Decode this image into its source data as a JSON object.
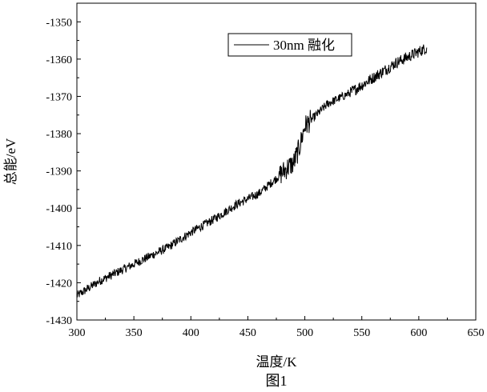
{
  "figure": {
    "caption": "图1"
  },
  "chart_data": {
    "type": "line",
    "title": "",
    "xlabel": "温度/K",
    "ylabel": "总能/eV",
    "xlim": [
      300,
      650
    ],
    "ylim": [
      -1430,
      -1345
    ],
    "x_ticks": [
      300,
      350,
      400,
      450,
      500,
      550,
      600,
      650
    ],
    "y_ticks": [
      -1430,
      -1420,
      -1410,
      -1400,
      -1390,
      -1380,
      -1370,
      -1360,
      -1350
    ],
    "grid": false,
    "legend_position": "top-center",
    "line_color": "#000000",
    "series": [
      {
        "name": "30nm 融化",
        "x_range": [
          300,
          607
        ],
        "description_points": [
          [
            300,
            -1423.5
          ],
          [
            320,
            -1419.5
          ],
          [
            340,
            -1416.5
          ],
          [
            360,
            -1413.5
          ],
          [
            380,
            -1410.5
          ],
          [
            400,
            -1406.5
          ],
          [
            420,
            -1403
          ],
          [
            440,
            -1399
          ],
          [
            460,
            -1396
          ],
          [
            475,
            -1392
          ],
          [
            485,
            -1389
          ],
          [
            490,
            -1388
          ],
          [
            495,
            -1384
          ],
          [
            500,
            -1378
          ],
          [
            510,
            -1375
          ],
          [
            520,
            -1372
          ],
          [
            540,
            -1369
          ],
          [
            560,
            -1365
          ],
          [
            580,
            -1361
          ],
          [
            600,
            -1358
          ],
          [
            607,
            -1357
          ]
        ],
        "noise_amplitude": 1.2,
        "transition_noise_amplitude": 3.0
      }
    ]
  }
}
